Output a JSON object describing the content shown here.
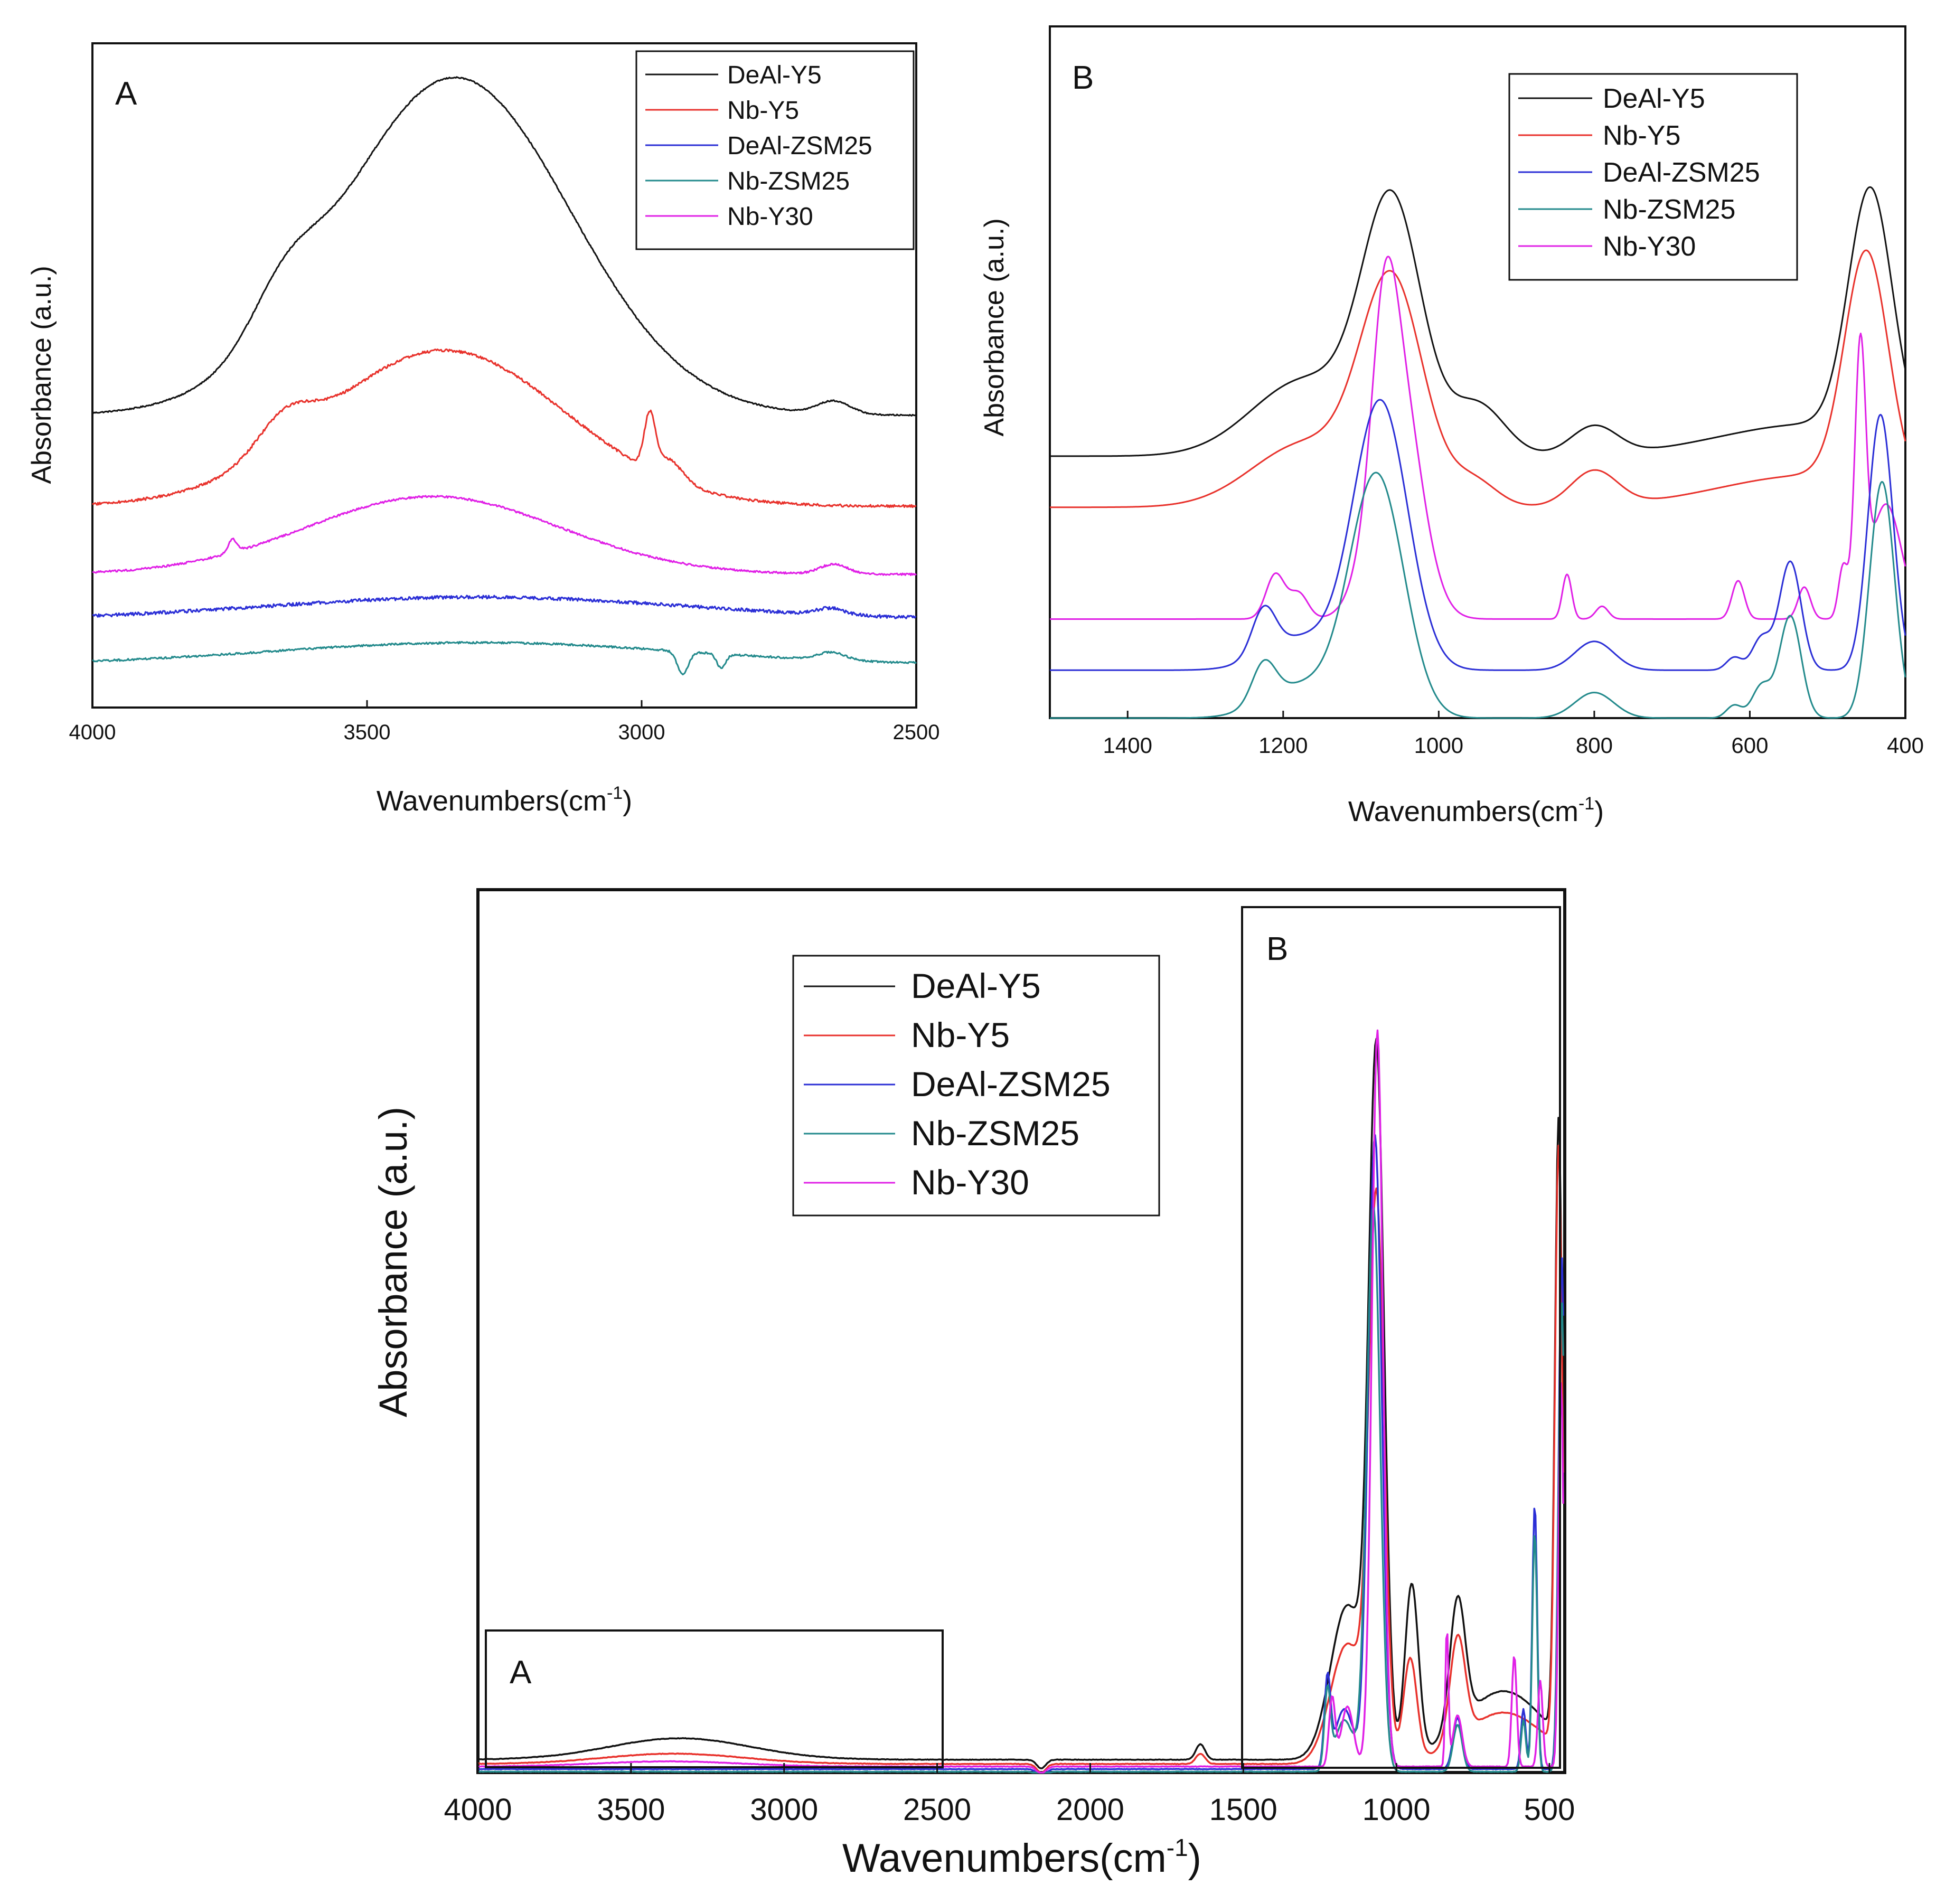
{
  "figure": {
    "series_names": [
      "DeAl-Y5",
      "Nb-Y5",
      "DeAl-ZSM25",
      "Nb-ZSM25",
      "Nb-Y30"
    ],
    "colors": {
      "DeAl-Y5": "#111111",
      "Nb-Y5": "#e8322c",
      "DeAl-ZSM25": "#2b2fd6",
      "Nb-ZSM25": "#238a8c",
      "Nb-Y30": "#e020e6",
      "axis": "#111111"
    }
  },
  "chart_data": [
    {
      "id": "A",
      "type": "line",
      "panel_label": "A",
      "xlabel": "Wavenumbers(cm",
      "xlabel_sup": "-1",
      "xlabel_end": ")",
      "ylabel": "Absorbance (a.u.)",
      "xlim": [
        4000,
        2500
      ],
      "ylim": [
        0,
        1
      ],
      "xticks": [
        4000,
        3500,
        3000,
        2500
      ],
      "xtick_labels": [
        "4000",
        "3500",
        "3000",
        "2500"
      ],
      "legend": [
        "DeAl-Y5",
        "Nb-Y5",
        "DeAl-ZSM25",
        "Nb-ZSM25",
        "Nb-Y30"
      ],
      "legend_position": "top-right",
      "series": [
        {
          "name": "DeAl-Y5",
          "offset": 0.45,
          "noise": 0.002,
          "peaks": [
            [
              3340,
              0.52,
              210
            ],
            [
              3650,
              0.07,
              60
            ],
            [
              2650,
              0.02,
              30
            ]
          ],
          "dips": [],
          "xr": [
            4000,
            2500
          ]
        },
        {
          "name": "Nb-Y5",
          "offset": 0.31,
          "noise": 0.004,
          "peaks": [
            [
              3360,
              0.24,
              220
            ],
            [
              3650,
              0.05,
              50
            ],
            [
              2985,
              0.08,
              10
            ],
            [
              2950,
              0.03,
              25
            ]
          ],
          "dips": [],
          "xr": [
            4000,
            2500
          ]
        },
        {
          "name": "Nb-Y30",
          "offset": 0.205,
          "noise": 0.003,
          "peaks": [
            [
              3380,
              0.12,
              230
            ],
            [
              3745,
              0.02,
              8
            ],
            [
              2650,
              0.015,
              25
            ]
          ],
          "dips": [],
          "xr": [
            4000,
            2500
          ]
        },
        {
          "name": "DeAl-ZSM25",
          "offset": 0.135,
          "noise": 0.005,
          "peaks": [
            [
              3300,
              0.035,
              380
            ],
            [
              2655,
              0.01,
              25
            ]
          ],
          "dips": [],
          "xr": [
            4000,
            2500
          ]
        },
        {
          "name": "Nb-ZSM25",
          "offset": 0.065,
          "noise": 0.003,
          "peaks": [
            [
              3300,
              0.035,
              380
            ],
            [
              2655,
              0.012,
              25
            ]
          ],
          "dips": [
            [
              2925,
              0.035,
              10
            ],
            [
              2855,
              0.022,
              8
            ]
          ],
          "xr": [
            4000,
            2500
          ]
        }
      ]
    },
    {
      "id": "B",
      "type": "line",
      "panel_label": "B",
      "xlabel": "Wavenumbers(cm",
      "xlabel_sup": "-1",
      "xlabel_end": ")",
      "ylabel": "Absorbance (a.u.)",
      "xlim": [
        1500,
        400
      ],
      "ylim": [
        0,
        1
      ],
      "xticks": [
        1400,
        1200,
        1000,
        800,
        600,
        400
      ],
      "xtick_labels": [
        "1400",
        "1200",
        "1000",
        "800",
        "600",
        "400"
      ],
      "legend": [
        "DeAl-Y5",
        "Nb-Y5",
        "DeAl-ZSM25",
        "Nb-ZSM25",
        "Nb-Y30"
      ],
      "legend_position": "top-right",
      "series": [
        {
          "name": "DeAl-Y5",
          "offset": 0.41,
          "noise": 0,
          "peaks": [
            [
              1060,
              0.38,
              38
            ],
            [
              1170,
              0.12,
              70
            ],
            [
              950,
              0.08,
              35
            ],
            [
              800,
              0.045,
              30
            ],
            [
              445,
              0.38,
              28
            ],
            [
              520,
              0.05,
              120
            ]
          ],
          "dips": [],
          "xr": [
            1500,
            400
          ]
        },
        {
          "name": "Nb-Y5",
          "offset": 0.33,
          "noise": 0,
          "peaks": [
            [
              1060,
              0.34,
              40
            ],
            [
              1170,
              0.1,
              70
            ],
            [
              955,
              0.04,
              30
            ],
            [
              800,
              0.055,
              30
            ],
            [
              450,
              0.36,
              28
            ],
            [
              520,
              0.05,
              120
            ]
          ],
          "dips": [],
          "xr": [
            1500,
            400
          ]
        },
        {
          "name": "Nb-Y30",
          "offset": 0.155,
          "noise": 0,
          "peaks": [
            [
              1055,
              0.4,
              30
            ],
            [
              1070,
              0.2,
              15
            ],
            [
              1210,
              0.07,
              12
            ],
            [
              1180,
              0.04,
              12
            ],
            [
              835,
              0.07,
              6
            ],
            [
              790,
              0.02,
              8
            ],
            [
              615,
              0.06,
              8
            ],
            [
              530,
              0.05,
              8
            ],
            [
              458,
              0.4,
              7
            ],
            [
              425,
              0.18,
              20
            ],
            [
              480,
              0.08,
              6
            ]
          ],
          "dips": [],
          "xr": [
            1500,
            400
          ]
        },
        {
          "name": "DeAl-ZSM25",
          "offset": 0.075,
          "noise": 0,
          "peaks": [
            [
              1075,
              0.42,
              35
            ],
            [
              1225,
              0.07,
              15
            ],
            [
              1180,
              0.05,
              45
            ],
            [
              800,
              0.045,
              25
            ],
            [
              548,
              0.17,
              14
            ],
            [
              585,
              0.05,
              12
            ],
            [
              432,
              0.4,
              16
            ],
            [
              620,
              0.02,
              10
            ]
          ],
          "dips": [],
          "xr": [
            1500,
            400
          ]
        },
        {
          "name": "Nb-ZSM25",
          "offset": 0.0,
          "noise": 0,
          "peaks": [
            [
              1080,
              0.38,
              35
            ],
            [
              1225,
              0.06,
              15
            ],
            [
              1180,
              0.05,
              45
            ],
            [
              800,
              0.04,
              25
            ],
            [
              548,
              0.16,
              14
            ],
            [
              585,
              0.05,
              12
            ],
            [
              430,
              0.37,
              16
            ],
            [
              620,
              0.02,
              10
            ]
          ],
          "dips": [],
          "xr": [
            1500,
            400
          ]
        }
      ]
    },
    {
      "id": "C",
      "type": "line",
      "xlabel": "Wavenumbers(cm",
      "xlabel_sup": "-1",
      "xlabel_end": ")",
      "ylabel": "Absorbance (a.u.)",
      "xlim": [
        4000,
        450
      ],
      "ylim": [
        0,
        1
      ],
      "xticks": [
        4000,
        3500,
        3000,
        2500,
        2000,
        1500,
        1000,
        500
      ],
      "xtick_labels": [
        "4000",
        "3500",
        "3000",
        "2500",
        "2000",
        "1500",
        "1000",
        "500"
      ],
      "legend": [
        "DeAl-Y5",
        "Nb-Y5",
        "DeAl-ZSM25",
        "Nb-ZSM25",
        "Nb-Y30"
      ],
      "legend_position": "top-left",
      "inset_labels": [
        "A",
        "B"
      ],
      "inset_A_range": [
        3980,
        2490
      ],
      "inset_B_range": [
        1505,
        460
      ],
      "series": [
        {
          "name": "DeAl-Y5",
          "offset": 0.015,
          "noise": 0.0006,
          "peaks": [
            [
              3340,
              0.025,
              230
            ],
            [
              1640,
              0.018,
              15
            ],
            [
              1065,
              0.8,
              25
            ],
            [
              1160,
              0.18,
              55
            ],
            [
              950,
              0.2,
              22
            ],
            [
              800,
              0.15,
              25
            ],
            [
              650,
              0.08,
              130
            ],
            [
              470,
              0.72,
              12
            ]
          ],
          "dips": [
            [
              2160,
              0.01,
              15
            ]
          ],
          "xr": [
            4000,
            455
          ]
        },
        {
          "name": "Nb-Y5",
          "offset": 0.01,
          "noise": 0.0006,
          "peaks": [
            [
              3360,
              0.012,
              230
            ],
            [
              1640,
              0.012,
              15
            ],
            [
              1065,
              0.64,
              25
            ],
            [
              1160,
              0.14,
              55
            ],
            [
              955,
              0.12,
              22
            ],
            [
              800,
              0.12,
              25
            ],
            [
              650,
              0.06,
              130
            ],
            [
              470,
              0.7,
              12
            ]
          ],
          "dips": [
            [
              2160,
              0.01,
              15
            ]
          ],
          "xr": [
            4000,
            455
          ]
        },
        {
          "name": "DeAl-ZSM25",
          "offset": 0.004,
          "noise": 0.0006,
          "peaks": [
            [
              1070,
              0.74,
              22
            ],
            [
              1225,
              0.1,
              10
            ],
            [
              1170,
              0.07,
              30
            ],
            [
              800,
              0.06,
              15
            ],
            [
              548,
              0.31,
              8
            ],
            [
              585,
              0.07,
              8
            ],
            [
              460,
              0.6,
              10
            ]
          ],
          "dips": [
            [
              2160,
              0.008,
              15
            ]
          ],
          "xr": [
            4000,
            455
          ]
        },
        {
          "name": "Nb-ZSM25",
          "offset": 0.001,
          "noise": 0.0006,
          "peaks": [
            [
              1075,
              0.66,
              22
            ],
            [
              1225,
              0.09,
              10
            ],
            [
              1170,
              0.06,
              30
            ],
            [
              800,
              0.055,
              15
            ],
            [
              548,
              0.28,
              8
            ],
            [
              585,
              0.06,
              8
            ],
            [
              460,
              0.55,
              10
            ]
          ],
          "dips": [
            [
              2160,
              0.008,
              15
            ]
          ],
          "xr": [
            4000,
            455
          ]
        },
        {
          "name": "Nb-Y30",
          "offset": 0.007,
          "noise": 0.0006,
          "peaks": [
            [
              3380,
              0.006,
              230
            ],
            [
              1062,
              0.86,
              18
            ],
            [
              1210,
              0.08,
              10
            ],
            [
              1160,
              0.07,
              20
            ],
            [
              835,
              0.16,
              5
            ],
            [
              800,
              0.06,
              15
            ],
            [
              615,
              0.13,
              8
            ],
            [
              530,
              0.1,
              8
            ],
            [
              462,
              0.45,
              8
            ]
          ],
          "dips": [
            [
              2160,
              0.008,
              15
            ]
          ],
          "xr": [
            4000,
            455
          ]
        }
      ]
    }
  ]
}
